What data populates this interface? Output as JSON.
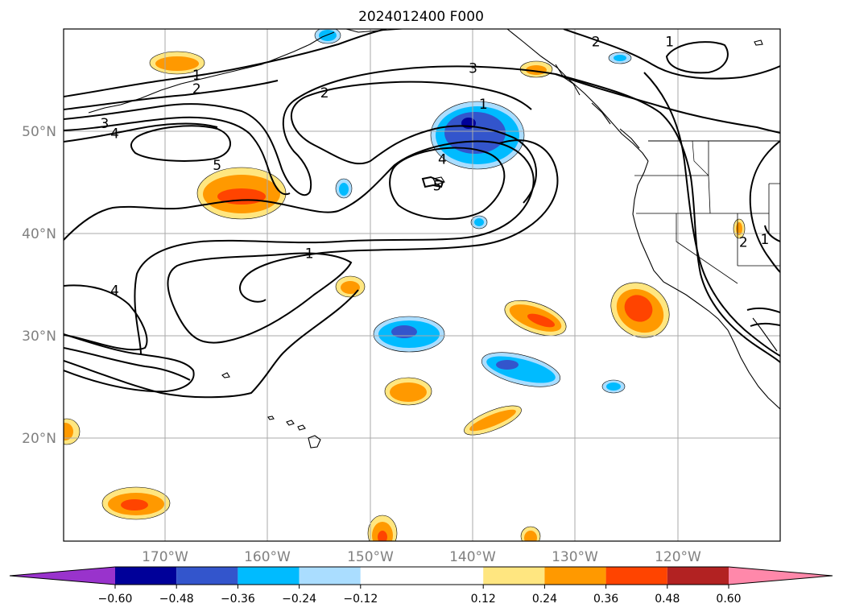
{
  "title": "2024012400 F000",
  "colors": {
    "neg_extend": "#9933cc",
    "neg": [
      "#000099",
      "#3355cc",
      "#00bbff",
      "#aaddff"
    ],
    "zero": "#ffffff",
    "pos": [
      "#ffe680",
      "#ff9900",
      "#ff4400",
      "#b22222"
    ],
    "pos_extend": "#ff88aa",
    "contour": "#000000",
    "coast": "#000000",
    "grid": "#aaaaaa"
  },
  "lon_ticks": [
    "170°W",
    "160°W",
    "150°W",
    "140°W",
    "130°W",
    "120°W"
  ],
  "lat_ticks": [
    "50°N",
    "40°N",
    "30°N",
    "20°N"
  ],
  "colorbar": {
    "levels": [
      -0.72,
      -0.6,
      -0.48,
      -0.36,
      -0.24,
      -0.12,
      0.12,
      0.24,
      0.36,
      0.48,
      0.6,
      0.72
    ],
    "labels": [
      "−0.60",
      "−0.48",
      "−0.36",
      "−0.24",
      "−0.12",
      "0.12",
      "0.24",
      "0.36",
      "0.48",
      "0.60"
    ]
  },
  "contour_labels": [
    {
      "text": "1",
      "lon": -167,
      "lat": 55.5
    },
    {
      "text": "2",
      "lon": -167,
      "lat": 54.2
    },
    {
      "text": "3",
      "lon": -176,
      "lat": 50.8
    },
    {
      "text": "4",
      "lon": -175,
      "lat": 49.8
    },
    {
      "text": "5",
      "lon": -165,
      "lat": 46.7
    },
    {
      "text": "2",
      "lon": -154.5,
      "lat": 53.8
    },
    {
      "text": "3",
      "lon": -140,
      "lat": 56.2
    },
    {
      "text": "1",
      "lon": -139,
      "lat": 52.7
    },
    {
      "text": "2",
      "lon": -128,
      "lat": 58.8
    },
    {
      "text": "1",
      "lon": -120.8,
      "lat": 58.8
    },
    {
      "text": "4",
      "lon": -143,
      "lat": 47.3
    },
    {
      "text": "5",
      "lon": -143.5,
      "lat": 44.7
    },
    {
      "text": "1",
      "lon": -156,
      "lat": 38.1
    },
    {
      "text": "4",
      "lon": -175,
      "lat": 34.5
    },
    {
      "text": "2",
      "lon": -113.6,
      "lat": 39.2
    },
    {
      "text": "1",
      "lon": -111.5,
      "lat": 39.5
    }
  ]
}
